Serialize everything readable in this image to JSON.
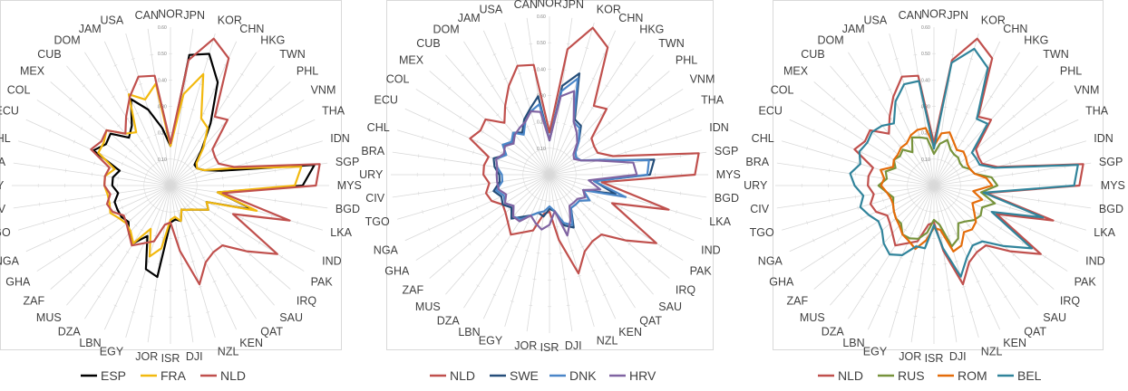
{
  "chart_data": [
    {
      "type": "radar",
      "categories": [
        "NOR",
        "JPN",
        "KOR",
        "CHN",
        "HKG",
        "TWN",
        "PHL",
        "VNM",
        "THA",
        "IDN",
        "SGP",
        "MYS",
        "BGD",
        "LKA",
        "IND",
        "PAK",
        "IRQ",
        "SAU",
        "QAT",
        "KEN",
        "NZL",
        "DJI",
        "ISR",
        "JOR",
        "EGY",
        "LBN",
        "DZA",
        "MUS",
        "ZAF",
        "GHA",
        "NGA",
        "TGO",
        "CIV",
        "URY",
        "BRA",
        "CHL",
        "ECU",
        "COL",
        "MEX",
        "CUB",
        "DOM",
        "JAM",
        "USA",
        "CAN"
      ],
      "rlim": [
        0,
        0.6
      ],
      "ticks": [
        "0.10",
        "0.20",
        "0.30",
        "0.40",
        "0.50",
        "0.60"
      ],
      "legend_position": "bottom",
      "series": [
        {
          "name": "ESP",
          "color": "#000000",
          "values": [
            0.15,
            0.5,
            0.52,
            0.43,
            0.28,
            0.18,
            0.12,
            0.12,
            0.14,
            0.2,
            0.55,
            0.5,
            0.18,
            0.33,
            0.15,
            0.17,
            0.14,
            0.12,
            0.11,
            0.1,
            0.14,
            0.13,
            0.14,
            0.35,
            0.33,
            0.21,
            0.26,
            0.24,
            0.21,
            0.22,
            0.22,
            0.22,
            0.2,
            0.22,
            0.22,
            0.2,
            0.32,
            0.29,
            0.3,
            0.24,
            0.27,
            0.36,
            0.3,
            0.22
          ]
        },
        {
          "name": "FRA",
          "color": "#f2b90f",
          "values": [
            0.15,
            0.35,
            0.44,
            0.28,
            0.26,
            0.19,
            0.13,
            0.12,
            0.14,
            0.23,
            0.5,
            0.47,
            0.18,
            0.34,
            0.15,
            0.17,
            0.14,
            0.12,
            0.11,
            0.1,
            0.14,
            0.12,
            0.13,
            0.24,
            0.28,
            0.18,
            0.26,
            0.23,
            0.22,
            0.23,
            0.25,
            0.24,
            0.24,
            0.25,
            0.25,
            0.22,
            0.3,
            0.3,
            0.32,
            0.26,
            0.24,
            0.38,
            0.34,
            0.39
          ]
        },
        {
          "name": "NLD",
          "color": "#c0504d",
          "values": [
            0.16,
            0.48,
            0.58,
            0.53,
            0.31,
            0.33,
            0.21,
            0.2,
            0.2,
            0.25,
            0.57,
            0.55,
            0.2,
            0.47,
            0.26,
            0.48,
            0.38,
            0.3,
            0.3,
            0.32,
            0.39,
            0.25,
            0.14,
            0.15,
            0.22,
            0.24,
            0.27,
            0.24,
            0.22,
            0.21,
            0.24,
            0.25,
            0.23,
            0.25,
            0.25,
            0.24,
            0.33,
            0.31,
            0.32,
            0.26,
            0.31,
            0.37,
            0.43,
            0.42
          ]
        }
      ]
    },
    {
      "type": "radar",
      "categories": [
        "NOR",
        "JPN",
        "KOR",
        "CHN",
        "HKG",
        "TWN",
        "PHL",
        "VNM",
        "THA",
        "IDN",
        "SGP",
        "MYS",
        "BGD",
        "LKA",
        "IND",
        "PAK",
        "IRQ",
        "SAU",
        "QAT",
        "KEN",
        "NZL",
        "DJI",
        "ISR",
        "JOR",
        "EGY",
        "LBN",
        "DZA",
        "MUS",
        "ZAF",
        "GHA",
        "NGA",
        "TGO",
        "CIV",
        "URY",
        "BRA",
        "CHL",
        "ECU",
        "COL",
        "MEX",
        "CUB",
        "DOM",
        "JAM",
        "USA",
        "CAN"
      ],
      "rlim": [
        0,
        0.6
      ],
      "ticks": [
        "0.10",
        "0.20",
        "0.30",
        "0.40",
        "0.50",
        "0.60"
      ],
      "legend_position": "bottom",
      "series": [
        {
          "name": "NLD",
          "color": "#c0504d",
          "values": [
            0.16,
            0.48,
            0.58,
            0.53,
            0.31,
            0.33,
            0.21,
            0.2,
            0.2,
            0.25,
            0.57,
            0.55,
            0.2,
            0.47,
            0.26,
            0.48,
            0.38,
            0.3,
            0.3,
            0.32,
            0.39,
            0.25,
            0.14,
            0.15,
            0.22,
            0.24,
            0.27,
            0.24,
            0.22,
            0.21,
            0.24,
            0.25,
            0.23,
            0.25,
            0.25,
            0.24,
            0.33,
            0.31,
            0.32,
            0.26,
            0.31,
            0.37,
            0.43,
            0.42
          ]
        },
        {
          "name": "SWE",
          "color": "#254e7a",
          "values": [
            0.13,
            0.34,
            0.4,
            0.23,
            0.22,
            0.17,
            0.13,
            0.12,
            0.13,
            0.19,
            0.4,
            0.38,
            0.17,
            0.26,
            0.14,
            0.18,
            0.15,
            0.15,
            0.15,
            0.22,
            0.2,
            0.14,
            0.13,
            0.16,
            0.15,
            0.17,
            0.19,
            0.22,
            0.19,
            0.21,
            0.2,
            0.22,
            0.19,
            0.19,
            0.21,
            0.22,
            0.18,
            0.21,
            0.18,
            0.21,
            0.19,
            0.23,
            0.26,
            0.3
          ]
        },
        {
          "name": "DNK",
          "color": "#4a86c8",
          "values": [
            0.13,
            0.32,
            0.38,
            0.22,
            0.21,
            0.17,
            0.13,
            0.12,
            0.13,
            0.2,
            0.38,
            0.37,
            0.17,
            0.3,
            0.14,
            0.18,
            0.15,
            0.15,
            0.15,
            0.21,
            0.19,
            0.14,
            0.12,
            0.14,
            0.15,
            0.17,
            0.2,
            0.21,
            0.18,
            0.2,
            0.19,
            0.21,
            0.18,
            0.18,
            0.2,
            0.21,
            0.18,
            0.21,
            0.19,
            0.21,
            0.18,
            0.22,
            0.25,
            0.27
          ]
        },
        {
          "name": "HRV",
          "color": "#8064a2",
          "values": [
            0.13,
            0.3,
            0.33,
            0.22,
            0.19,
            0.16,
            0.12,
            0.11,
            0.13,
            0.19,
            0.32,
            0.33,
            0.15,
            0.2,
            0.14,
            0.16,
            0.14,
            0.14,
            0.14,
            0.19,
            0.24,
            0.14,
            0.19,
            0.21,
            0.19,
            0.17,
            0.21,
            0.21,
            0.18,
            0.2,
            0.18,
            0.2,
            0.2,
            0.2,
            0.2,
            0.21,
            0.19,
            0.2,
            0.18,
            0.2,
            0.21,
            0.22,
            0.25,
            0.24
          ]
        }
      ]
    },
    {
      "type": "radar",
      "categories": [
        "NOR",
        "JPN",
        "KOR",
        "CHN",
        "HKG",
        "TWN",
        "PHL",
        "VNM",
        "THA",
        "IDN",
        "SGP",
        "MYS",
        "BGD",
        "LKA",
        "IND",
        "PAK",
        "IRQ",
        "SAU",
        "QAT",
        "KEN",
        "NZL",
        "DJI",
        "ISR",
        "JOR",
        "EGY",
        "LBN",
        "DZA",
        "MUS",
        "ZAF",
        "GHA",
        "NGA",
        "TGO",
        "CIV",
        "URY",
        "BRA",
        "CHL",
        "ECU",
        "COL",
        "MEX",
        "CUB",
        "DOM",
        "JAM",
        "USA",
        "CAN"
      ],
      "rlim": [
        0,
        0.6
      ],
      "ticks": [
        "0.10",
        "0.20",
        "0.30",
        "0.40",
        "0.50",
        "0.60"
      ],
      "legend_position": "bottom",
      "series": [
        {
          "name": "NLD",
          "color": "#c0504d",
          "values": [
            0.16,
            0.48,
            0.58,
            0.53,
            0.31,
            0.33,
            0.21,
            0.2,
            0.2,
            0.25,
            0.57,
            0.55,
            0.2,
            0.47,
            0.26,
            0.48,
            0.38,
            0.3,
            0.3,
            0.32,
            0.39,
            0.25,
            0.14,
            0.15,
            0.22,
            0.24,
            0.27,
            0.24,
            0.22,
            0.21,
            0.24,
            0.25,
            0.23,
            0.25,
            0.25,
            0.24,
            0.33,
            0.31,
            0.32,
            0.26,
            0.31,
            0.37,
            0.43,
            0.42
          ]
        },
        {
          "name": "RUS",
          "color": "#77933c",
          "values": [
            0.12,
            0.16,
            0.18,
            0.15,
            0.14,
            0.14,
            0.13,
            0.13,
            0.15,
            0.16,
            0.22,
            0.24,
            0.18,
            0.24,
            0.2,
            0.21,
            0.2,
            0.18,
            0.17,
            0.22,
            0.24,
            0.15,
            0.13,
            0.18,
            0.21,
            0.22,
            0.22,
            0.19,
            0.19,
            0.18,
            0.17,
            0.16,
            0.18,
            0.21,
            0.18,
            0.19,
            0.16,
            0.18,
            0.17,
            0.18,
            0.15,
            0.2,
            0.19,
            0.18
          ]
        },
        {
          "name": "ROM",
          "color": "#e46c0a",
          "values": [
            0.15,
            0.2,
            0.21,
            0.18,
            0.16,
            0.17,
            0.16,
            0.15,
            0.15,
            0.16,
            0.2,
            0.22,
            0.15,
            0.19,
            0.16,
            0.18,
            0.21,
            0.22,
            0.21,
            0.25,
            0.26,
            0.17,
            0.16,
            0.21,
            0.25,
            0.23,
            0.22,
            0.2,
            0.19,
            0.18,
            0.17,
            0.17,
            0.18,
            0.2,
            0.19,
            0.21,
            0.17,
            0.18,
            0.18,
            0.19,
            0.19,
            0.21,
            0.22,
            0.22
          ]
        },
        {
          "name": "BEL",
          "color": "#31849b",
          "values": [
            0.14,
            0.47,
            0.54,
            0.49,
            0.3,
            0.31,
            0.19,
            0.19,
            0.19,
            0.24,
            0.55,
            0.53,
            0.19,
            0.43,
            0.24,
            0.44,
            0.35,
            0.28,
            0.27,
            0.3,
            0.36,
            0.24,
            0.15,
            0.24,
            0.24,
            0.29,
            0.31,
            0.29,
            0.26,
            0.25,
            0.27,
            0.29,
            0.27,
            0.3,
            0.32,
            0.29,
            0.31,
            0.3,
            0.31,
            0.3,
            0.28,
            0.35,
            0.4,
            0.4
          ]
        }
      ]
    }
  ]
}
